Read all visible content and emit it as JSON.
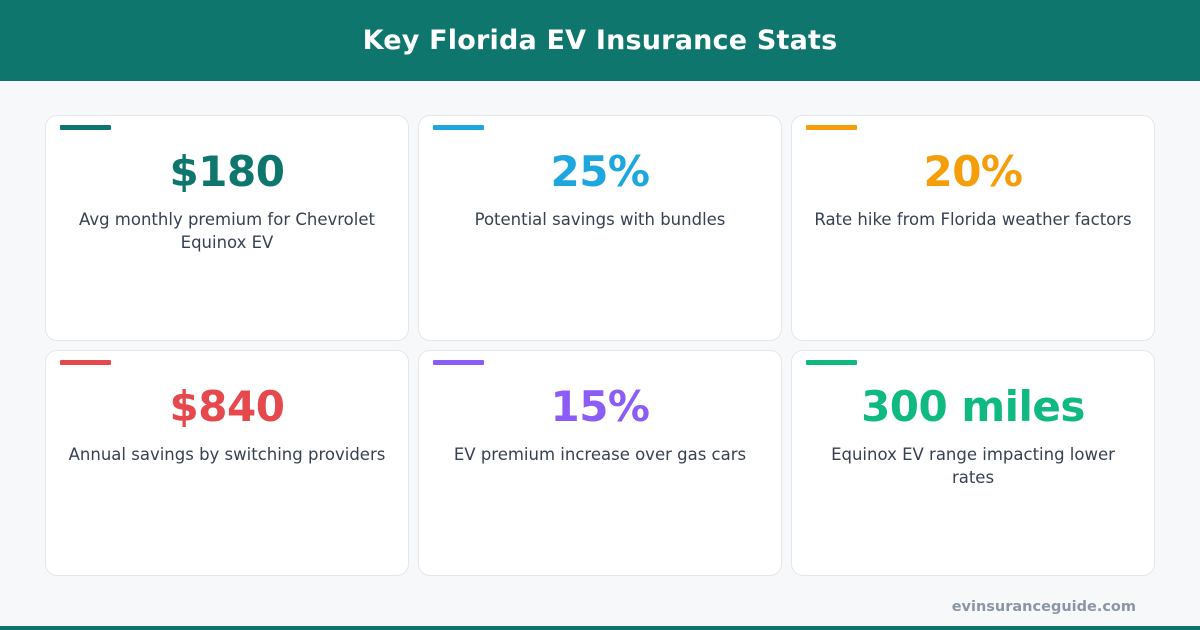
{
  "header": {
    "title": "Key Florida EV Insurance Stats",
    "background_color": "#0f766e"
  },
  "stats": [
    {
      "value": "$180",
      "description": "Avg monthly premium for Chevrolet Equinox EV",
      "color": "#0f766e"
    },
    {
      "value": "25%",
      "description": "Potential savings with bundles",
      "color": "#1ea7de"
    },
    {
      "value": "20%",
      "description": "Rate hike from Florida weather factors",
      "color": "#f59e0b"
    },
    {
      "value": "$840",
      "description": "Annual savings by switching providers",
      "color": "#e5484d"
    },
    {
      "value": "15%",
      "description": "EV premium increase over gas cars",
      "color": "#8b5cf6"
    },
    {
      "value": "300 miles",
      "description": "Equinox EV range impacting lower rates",
      "color": "#10b981"
    }
  ],
  "footer": {
    "domain": "evinsuranceguide.com"
  }
}
